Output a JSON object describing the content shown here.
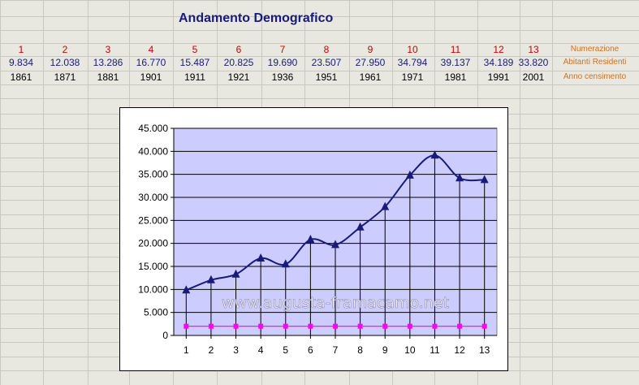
{
  "sheet": {
    "title": "Andamento Demografico",
    "rows": {
      "numbering": {
        "label": "Numerazione",
        "values": [
          "1",
          "2",
          "3",
          "4",
          "5",
          "6",
          "7",
          "8",
          "9",
          "10",
          "11",
          "12",
          "13"
        ]
      },
      "population": {
        "label": "Abitanti Residenti",
        "values": [
          "9.834",
          "12.038",
          "13.286",
          "16.770",
          "15.487",
          "20.825",
          "19.690",
          "23.507",
          "27.950",
          "34.794",
          "39.137",
          "34.189",
          "33.820"
        ]
      },
      "years": {
        "label": "Anno censimento",
        "values": [
          "1861",
          "1871",
          "1881",
          "1901",
          "1911",
          "1921",
          "1936",
          "1951",
          "1961",
          "1971",
          "1981",
          "1991",
          "2001"
        ]
      }
    }
  },
  "chart_data": {
    "type": "line",
    "categories": [
      "1",
      "2",
      "3",
      "4",
      "5",
      "6",
      "7",
      "8",
      "9",
      "10",
      "11",
      "12",
      "13"
    ],
    "series": [
      {
        "values": [
          9834,
          12038,
          13286,
          16770,
          15487,
          20825,
          19690,
          23507,
          27950,
          34794,
          39137,
          34189,
          33820
        ],
        "color": "#1a1a7a",
        "marker": "triangle"
      },
      {
        "values": [
          2000,
          2000,
          2000,
          2000,
          2000,
          2000,
          2000,
          2000,
          2000,
          2000,
          2000,
          2000,
          2000
        ],
        "color": "#ff00ff",
        "marker": "square"
      }
    ],
    "ylim": [
      0,
      45000
    ],
    "yticks": [
      "0",
      "5.000",
      "10.000",
      "15.000",
      "20.000",
      "25.000",
      "30.000",
      "35.000",
      "40.000",
      "45.000"
    ],
    "grid": true,
    "drop_lines": true,
    "plot_background": "#ccccff",
    "watermark": "www.augusta-framacamo.net"
  }
}
